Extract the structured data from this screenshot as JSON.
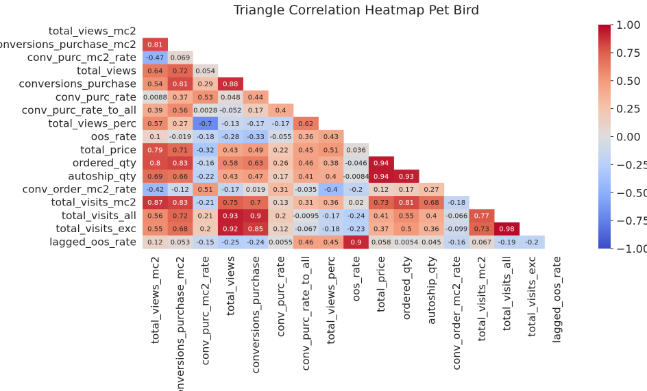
{
  "chart_data": {
    "type": "heatmap",
    "title": "Triangle Correlation Heatmap Pet Bird",
    "xlabel": "",
    "ylabel": "",
    "mask": "upper-triangle-including-diagonal",
    "colormap": "coolwarm",
    "vmin": -1.0,
    "vmax": 1.0,
    "colorbar_ticks": [
      "1.00",
      "0.75",
      "0.50",
      "0.25",
      "0.00",
      "−0.25",
      "−0.50",
      "−0.75",
      "−1.00"
    ],
    "colorbar_tick_values": [
      1.0,
      0.75,
      0.5,
      0.25,
      0.0,
      -0.25,
      -0.5,
      -0.75,
      -1.0
    ],
    "row_labels": [
      "total_views_mc2",
      "conversions_purchase_mc2",
      "conv_purc_mc2_rate",
      "total_views",
      "conversions_purchase",
      "conv_purc_rate",
      "conv_purc_rate_to_all",
      "total_views_perc",
      "oos_rate",
      "total_price",
      "ordered_qty",
      "autoship_qty",
      "conv_order_mc2_rate",
      "total_visits_mc2",
      "total_visits_all",
      "total_visits_exc",
      "lagged_oos_rate"
    ],
    "col_labels": [
      "total_views_mc2",
      "conversions_purchase_mc2",
      "conv_purc_mc2_rate",
      "total_views",
      "conversions_purchase",
      "conv_purc_rate",
      "conv_purc_rate_to_all",
      "total_views_perc",
      "oos_rate",
      "total_price",
      "ordered_qty",
      "autoship_qty",
      "conv_order_mc2_rate",
      "total_visits_mc2",
      "total_visits_all",
      "total_visits_exc",
      "lagged_oos_rate"
    ],
    "values": [
      [],
      [
        0.81
      ],
      [
        -0.47,
        0.069
      ],
      [
        0.64,
        0.72,
        0.054
      ],
      [
        0.54,
        0.81,
        0.29,
        0.88
      ],
      [
        0.0088,
        0.37,
        0.53,
        0.048,
        0.44
      ],
      [
        0.39,
        0.56,
        0.0028,
        -0.052,
        0.17,
        0.4
      ],
      [
        0.57,
        0.27,
        -0.7,
        -0.13,
        -0.17,
        -0.17,
        0.62
      ],
      [
        0.1,
        -0.019,
        -0.18,
        -0.28,
        -0.33,
        -0.055,
        0.36,
        0.43
      ],
      [
        0.79,
        0.71,
        -0.32,
        0.43,
        0.49,
        0.22,
        0.45,
        0.51,
        0.036
      ],
      [
        0.8,
        0.83,
        -0.16,
        0.58,
        0.63,
        0.26,
        0.46,
        0.38,
        -0.046,
        0.94
      ],
      [
        0.69,
        0.66,
        -0.22,
        0.43,
        0.47,
        0.17,
        0.41,
        0.4,
        -0.0084,
        0.94,
        0.93
      ],
      [
        -0.42,
        -0.12,
        0.51,
        -0.17,
        0.019,
        0.31,
        -0.035,
        -0.4,
        -0.2,
        0.12,
        0.17,
        0.27
      ],
      [
        0.87,
        0.83,
        -0.21,
        0.75,
        0.7,
        0.13,
        0.31,
        0.36,
        0.02,
        0.73,
        0.81,
        0.68,
        -0.18
      ],
      [
        0.56,
        0.72,
        0.21,
        0.93,
        0.9,
        0.2,
        -0.0095,
        -0.17,
        -0.24,
        0.41,
        0.55,
        0.4,
        -0.066,
        0.77
      ],
      [
        0.55,
        0.68,
        0.2,
        0.92,
        0.85,
        0.12,
        -0.067,
        -0.18,
        -0.23,
        0.37,
        0.5,
        0.36,
        -0.099,
        0.73,
        0.98
      ],
      [
        0.12,
        0.053,
        -0.15,
        -0.25,
        -0.24,
        0.0055,
        0.46,
        0.45,
        0.9,
        0.058,
        0.0054,
        0.045,
        -0.16,
        0.067,
        -0.19,
        -0.2
      ]
    ]
  }
}
